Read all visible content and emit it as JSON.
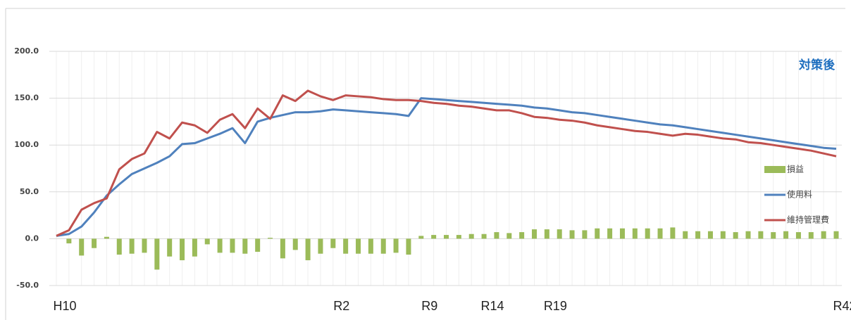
{
  "chart_data": {
    "type": "combo",
    "annotation": "対策後",
    "categories": [
      "H10",
      null,
      null,
      null,
      null,
      null,
      null,
      null,
      null,
      null,
      null,
      null,
      null,
      null,
      null,
      null,
      null,
      null,
      null,
      null,
      null,
      null,
      "R2",
      null,
      null,
      null,
      null,
      null,
      null,
      "R9",
      null,
      null,
      null,
      null,
      "R14",
      null,
      null,
      null,
      null,
      "R19",
      null,
      null,
      null,
      null,
      null,
      null,
      null,
      null,
      null,
      null,
      null,
      null,
      null,
      null,
      null,
      null,
      null,
      null,
      null,
      null,
      null,
      null,
      "R42"
    ],
    "series": [
      {
        "name": "損益",
        "type": "bar",
        "color": "#9bbb59",
        "values": [
          0,
          -5,
          -18,
          -10,
          2,
          -17,
          -16,
          -15,
          -33,
          -19,
          -23,
          -19,
          -6,
          -15,
          -15,
          -16,
          -14,
          1,
          -21,
          -12,
          -23,
          -16,
          -10,
          -16,
          -16,
          -16,
          -16,
          -15,
          -17,
          3,
          4,
          4,
          4,
          5,
          5,
          7,
          6,
          7,
          10,
          10,
          10,
          9,
          9,
          11,
          11,
          11,
          11,
          11,
          11,
          12,
          8,
          8,
          8,
          8,
          7,
          8,
          8,
          7,
          8,
          7,
          7,
          8,
          8
        ]
      },
      {
        "name": "使用料",
        "type": "line",
        "color": "#4f81bd",
        "values": [
          3,
          5,
          13,
          28,
          46,
          58,
          69,
          75,
          81,
          88,
          101,
          102,
          107,
          112,
          118,
          102,
          125,
          129,
          132,
          135,
          135,
          136,
          138,
          137,
          136,
          135,
          134,
          133,
          131,
          150,
          149,
          148,
          147,
          146,
          145,
          144,
          143,
          142,
          140,
          139,
          137,
          135,
          134,
          132,
          130,
          128,
          126,
          124,
          122,
          121,
          119,
          117,
          115,
          113,
          111,
          109,
          107,
          105,
          103,
          101,
          99,
          97,
          96
        ]
      },
      {
        "name": "維持管理費",
        "type": "line",
        "color": "#c0504d",
        "values": [
          3,
          9,
          31,
          38,
          43,
          74,
          85,
          91,
          114,
          107,
          124,
          121,
          113,
          127,
          133,
          118,
          139,
          128,
          153,
          147,
          158,
          152,
          148,
          153,
          152,
          151,
          149,
          148,
          148,
          147,
          145,
          144,
          142,
          141,
          139,
          137,
          137,
          134,
          130,
          129,
          127,
          126,
          124,
          121,
          119,
          117,
          115,
          114,
          112,
          110,
          112,
          111,
          109,
          107,
          106,
          103,
          102,
          100,
          98,
          96,
          94,
          91,
          88
        ]
      }
    ],
    "ylim": [
      -50,
      200
    ],
    "yticks": [
      {
        "value": -50,
        "label": "-50.0"
      },
      {
        "value": 0,
        "label": "0.0"
      },
      {
        "value": 50,
        "label": "50.0"
      },
      {
        "value": 100,
        "label": "100.0"
      },
      {
        "value": 150,
        "label": "150.0"
      },
      {
        "value": 200,
        "label": "200.0"
      }
    ],
    "grid": true,
    "legend": "right"
  }
}
